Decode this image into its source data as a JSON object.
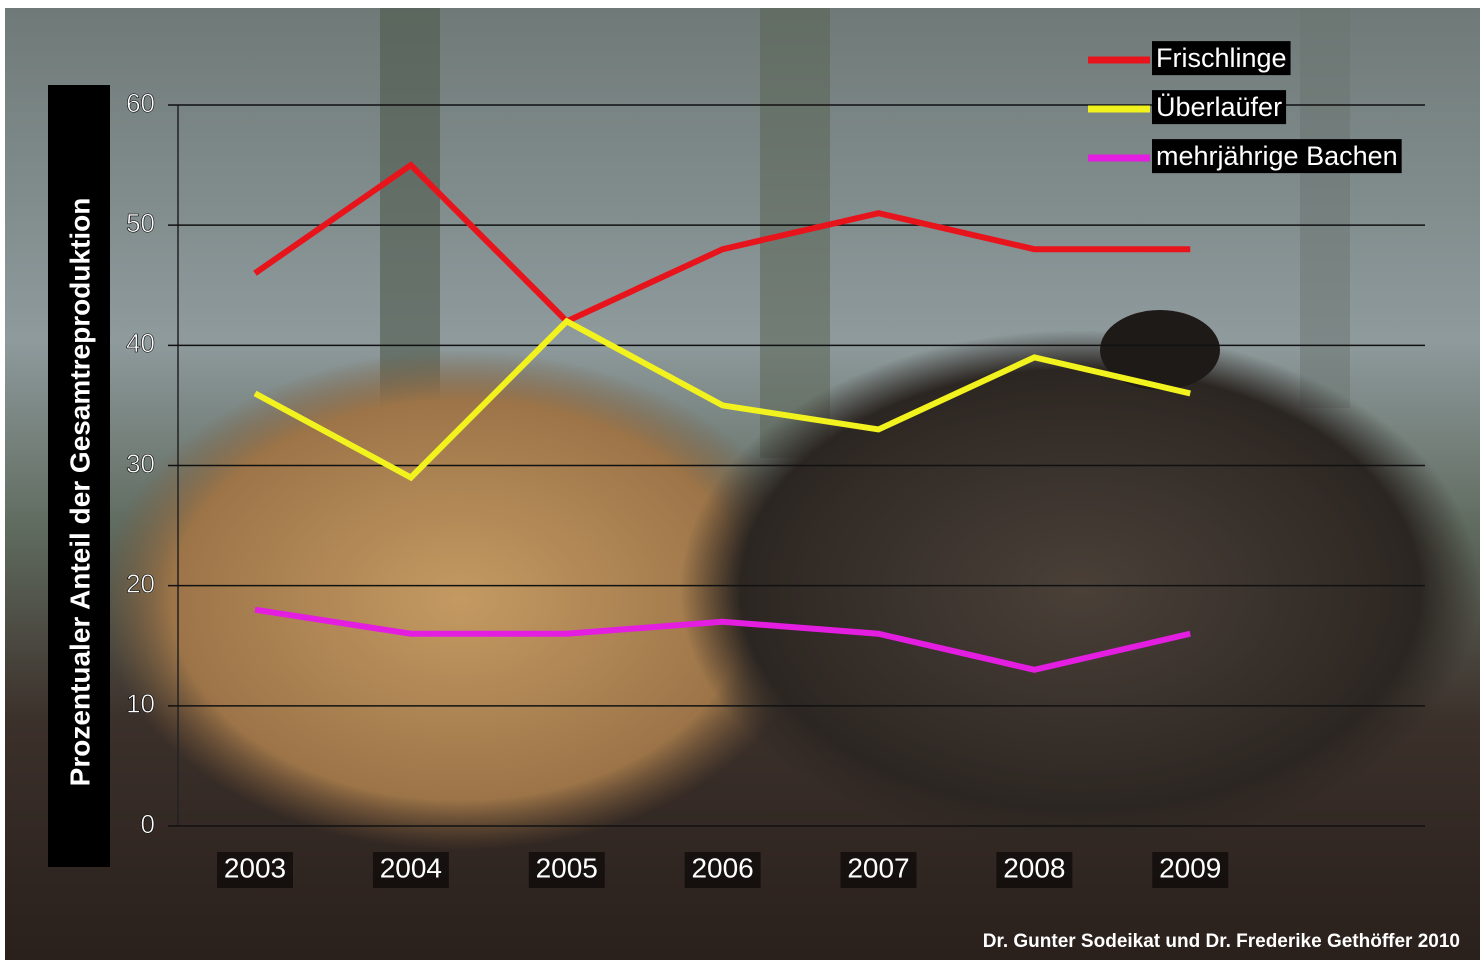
{
  "chart_data": {
    "type": "line",
    "y_label": "Prozentualer Anteil  der Gesamtreproduktion",
    "categories": [
      "2003",
      "2004",
      "2005",
      "2006",
      "2007",
      "2008",
      "2009"
    ],
    "series": [
      {
        "name": "Frischlinge",
        "color": "#e8141c",
        "values": [
          46,
          55,
          42,
          48,
          51,
          48,
          48
        ]
      },
      {
        "name": "Überlaüfer",
        "color": "#f2f21e",
        "values": [
          36,
          29,
          42,
          35,
          33,
          39,
          36
        ]
      },
      {
        "name": "mehrjährige Bachen",
        "color": "#e31ee0",
        "values": [
          18,
          16,
          16,
          17,
          16,
          13,
          16
        ]
      }
    ],
    "ylim": [
      0,
      60
    ],
    "yticks": [
      0,
      10,
      20,
      30,
      40,
      50,
      60
    ],
    "grid": true,
    "legend": "top-right",
    "credit": "Dr. Gunter Sodeikat und Dr. Frederike Gethöffer 2010"
  }
}
